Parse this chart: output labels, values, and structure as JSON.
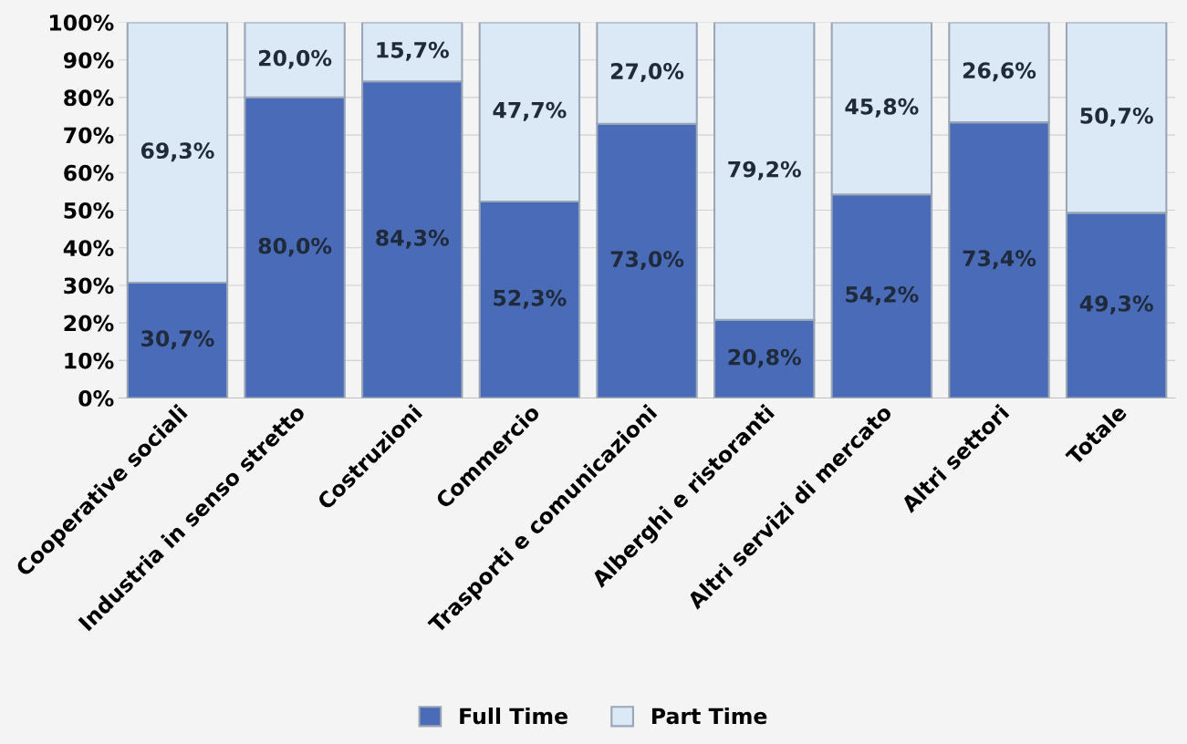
{
  "chart_data": {
    "type": "bar",
    "stacked": true,
    "categories": [
      "Cooperative sociali",
      "Industria in senso stretto",
      "Costruzioni",
      "Commercio",
      "Trasporti e comunicazioni",
      "Alberghi e ristoranti",
      "Altri servizi di mercato",
      "Altri settori",
      "Totale"
    ],
    "series": [
      {
        "name": "Full Time",
        "color": "#4a6cb8",
        "values": [
          30.7,
          80.0,
          84.3,
          52.3,
          73.0,
          20.8,
          54.2,
          73.4,
          49.3
        ],
        "value_labels": [
          "30,7%",
          "80,0%",
          "84,3%",
          "52,3%",
          "73,0%",
          "20,8%",
          "54,2%",
          "73,4%",
          "49,3%"
        ]
      },
      {
        "name": "Part Time",
        "color": "#dbe8f5",
        "values": [
          69.3,
          20.0,
          15.7,
          47.7,
          27.0,
          79.2,
          45.8,
          26.6,
          50.7
        ],
        "value_labels": [
          "69,3%",
          "20,0%",
          "15,7%",
          "47,7%",
          "27,0%",
          "79,2%",
          "45,8%",
          "26,6%",
          "50,7%"
        ]
      }
    ],
    "ylim": [
      0,
      100
    ],
    "yticks": [
      {
        "value": 0,
        "label": "0%"
      },
      {
        "value": 10,
        "label": "10%"
      },
      {
        "value": 20,
        "label": "20%"
      },
      {
        "value": 30,
        "label": "30%"
      },
      {
        "value": 40,
        "label": "40%"
      },
      {
        "value": 50,
        "label": "50%"
      },
      {
        "value": 60,
        "label": "60%"
      },
      {
        "value": 70,
        "label": "70%"
      },
      {
        "value": 80,
        "label": "80%"
      },
      {
        "value": 90,
        "label": "90%"
      },
      {
        "value": 100,
        "label": "100%"
      }
    ],
    "grid": "y",
    "legend": "bottom"
  }
}
